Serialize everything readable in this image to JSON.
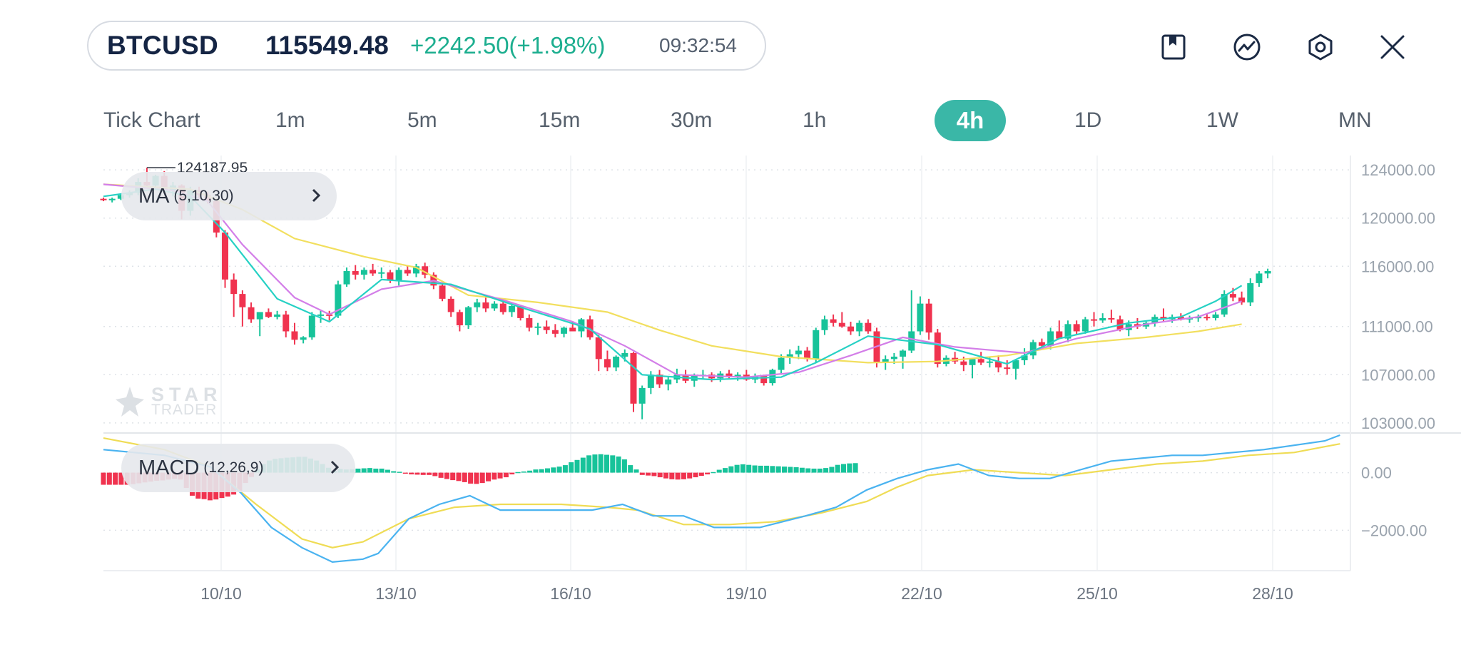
{
  "header": {
    "symbol": "BTCUSD",
    "price": "115549.48",
    "change": "+2242.50(+1.98%)",
    "time": "09:32:54"
  },
  "toolbar": {
    "icons": [
      "bookmark-icon",
      "indicator-icon",
      "settings-icon",
      "close-icon"
    ]
  },
  "timeframes": {
    "items": [
      "Tick Chart",
      "1m",
      "5m",
      "15m",
      "30m",
      "1h",
      "4h",
      "1D",
      "1W",
      "MN"
    ],
    "active": "4h"
  },
  "indicators": {
    "ma_label": "MA",
    "ma_params": "(5,10,30)",
    "macd_label": "MACD",
    "macd_params": "(12,26,9)"
  },
  "watermark": {
    "line1": "STAR",
    "line2": "TRADER"
  },
  "colors": {
    "up": "#17c39a",
    "down": "#f0334f",
    "ma5": "#26d1c4",
    "ma10": "#d37ee8",
    "ma30": "#f2df5e",
    "macd_line": "#4ab3f0",
    "signal_line": "#efdc55",
    "active_tab": "#3ab7a7"
  },
  "chart_data": {
    "type": "candlestick",
    "timeframe": "4h",
    "y_ticks": [
      "124000.00",
      "120000.00",
      "116000.00",
      "111000.00",
      "107000.00",
      "103000.00"
    ],
    "y_range": [
      102400,
      124600
    ],
    "x_ticks": [
      "10/10",
      "13/10",
      "16/10",
      "19/10",
      "22/10",
      "25/10",
      "28/10"
    ],
    "high_label": "124187.95",
    "candles": [
      [
        121600,
        121700,
        121400,
        121550
      ],
      [
        121550,
        121700,
        121300,
        121600
      ],
      [
        121600,
        122000,
        121500,
        121900
      ],
      [
        121900,
        122300,
        121700,
        122100
      ],
      [
        122100,
        123300,
        121900,
        123000
      ],
      [
        123000,
        124187,
        122600,
        122700
      ],
      [
        122700,
        123600,
        122600,
        123500
      ],
      [
        123500,
        123900,
        122200,
        122300
      ],
      [
        122300,
        123000,
        121800,
        122700
      ],
      [
        122700,
        122800,
        119900,
        120600
      ],
      [
        120600,
        122600,
        120200,
        122300
      ],
      [
        122300,
        122600,
        121700,
        121900
      ],
      [
        121900,
        122200,
        121200,
        121400
      ],
      [
        121400,
        121600,
        118400,
        118800
      ],
      [
        118800,
        119000,
        114200,
        114900
      ],
      [
        114900,
        115400,
        111800,
        113700
      ],
      [
        113700,
        114000,
        111000,
        112600
      ],
      [
        112600,
        113000,
        111300,
        111600
      ],
      [
        111600,
        112000,
        110200,
        112200
      ],
      [
        112200,
        112500,
        111700,
        111800
      ],
      [
        111800,
        112300,
        111600,
        112000
      ],
      [
        112000,
        112300,
        110100,
        110600
      ],
      [
        110600,
        111300,
        109500,
        109900
      ],
      [
        109900,
        110200,
        109600,
        110100
      ],
      [
        110100,
        112200,
        109900,
        111900
      ],
      [
        111900,
        112400,
        111300,
        112000
      ],
      [
        112000,
        112300,
        111500,
        111900
      ],
      [
        111900,
        114800,
        111700,
        114500
      ],
      [
        114500,
        115900,
        114300,
        115600
      ],
      [
        115600,
        116100,
        114900,
        115300
      ],
      [
        115300,
        115900,
        114900,
        115700
      ],
      [
        115700,
        116200,
        115200,
        115400
      ],
      [
        115400,
        115900,
        115000,
        115500
      ],
      [
        115500,
        115700,
        114600,
        114800
      ],
      [
        114800,
        115900,
        114400,
        115700
      ],
      [
        115700,
        116000,
        115200,
        115400
      ],
      [
        115400,
        116200,
        115100,
        116000
      ],
      [
        116000,
        116300,
        115000,
        115300
      ],
      [
        115300,
        115500,
        114100,
        114400
      ],
      [
        114400,
        114600,
        113100,
        113300
      ],
      [
        113300,
        113500,
        111800,
        112200
      ],
      [
        112200,
        112400,
        110600,
        111100
      ],
      [
        111100,
        112700,
        110800,
        112600
      ],
      [
        112600,
        113300,
        112200,
        113000
      ],
      [
        113000,
        113400,
        112200,
        112500
      ],
      [
        112500,
        113100,
        112300,
        112900
      ],
      [
        112900,
        113300,
        112000,
        112200
      ],
      [
        112200,
        113000,
        111800,
        112700
      ],
      [
        112700,
        112800,
        111500,
        111700
      ],
      [
        111700,
        112000,
        110600,
        110900
      ],
      [
        110900,
        111300,
        110300,
        111000
      ],
      [
        111000,
        111500,
        110400,
        110700
      ],
      [
        110700,
        111200,
        110100,
        110400
      ],
      [
        110400,
        111000,
        110100,
        110900
      ],
      [
        110900,
        111400,
        110600,
        110600
      ],
      [
        110600,
        111700,
        110100,
        111600
      ],
      [
        111600,
        111900,
        109900,
        110100
      ],
      [
        110100,
        110300,
        107300,
        108300
      ],
      [
        108300,
        109000,
        107300,
        107600
      ],
      [
        107600,
        108600,
        107300,
        108500
      ],
      [
        108500,
        109100,
        108100,
        108800
      ],
      [
        108800,
        108900,
        103900,
        104600
      ],
      [
        104600,
        106100,
        103300,
        105900
      ],
      [
        105900,
        107300,
        105400,
        107000
      ],
      [
        107000,
        107400,
        105900,
        106200
      ],
      [
        106200,
        106800,
        105700,
        106600
      ],
      [
        106600,
        107500,
        106300,
        107000
      ],
      [
        107000,
        107400,
        106300,
        106500
      ],
      [
        106500,
        107100,
        106000,
        106900
      ],
      [
        106900,
        107400,
        106600,
        107000
      ],
      [
        107000,
        107200,
        106400,
        106700
      ],
      [
        106700,
        107300,
        106400,
        107100
      ],
      [
        107100,
        107400,
        106700,
        106800
      ],
      [
        106800,
        107200,
        106500,
        107000
      ],
      [
        107000,
        107400,
        106500,
        106600
      ],
      [
        106600,
        107100,
        106300,
        106900
      ],
      [
        106900,
        107000,
        106100,
        106300
      ],
      [
        106300,
        107500,
        106100,
        107400
      ],
      [
        107400,
        108700,
        107000,
        108400
      ],
      [
        108400,
        109100,
        107900,
        108700
      ],
      [
        108700,
        109400,
        108300,
        109000
      ],
      [
        109000,
        109300,
        108100,
        108300
      ],
      [
        108300,
        110900,
        108000,
        110700
      ],
      [
        110700,
        111900,
        110300,
        111600
      ],
      [
        111600,
        112000,
        111000,
        111300
      ],
      [
        111300,
        112200,
        110900,
        111000
      ],
      [
        111000,
        111400,
        110300,
        110600
      ],
      [
        110600,
        111500,
        110200,
        111300
      ],
      [
        111300,
        111600,
        110400,
        110600
      ],
      [
        110600,
        110900,
        107600,
        108000
      ],
      [
        108000,
        108600,
        107400,
        108300
      ],
      [
        108300,
        108800,
        107900,
        108500
      ],
      [
        108500,
        109100,
        107500,
        109000
      ],
      [
        109000,
        114000,
        108800,
        110600
      ],
      [
        110600,
        113500,
        110300,
        112900
      ],
      [
        112900,
        113300,
        109900,
        110500
      ],
      [
        110500,
        110800,
        107600,
        107900
      ],
      [
        107900,
        108600,
        107700,
        108400
      ],
      [
        108400,
        108900,
        107900,
        108100
      ],
      [
        108100,
        108500,
        107300,
        107800
      ],
      [
        107800,
        108400,
        106700,
        108300
      ],
      [
        108300,
        108900,
        107800,
        108000
      ],
      [
        108000,
        108500,
        107600,
        108100
      ],
      [
        108100,
        108600,
        107200,
        107600
      ],
      [
        107600,
        108200,
        107000,
        107500
      ],
      [
        107500,
        108300,
        106600,
        108200
      ],
      [
        108200,
        109200,
        107800,
        108600
      ],
      [
        108600,
        109900,
        108300,
        109700
      ],
      [
        109700,
        110000,
        109200,
        109400
      ],
      [
        109400,
        110900,
        109100,
        110600
      ],
      [
        110600,
        111500,
        110100,
        110000
      ],
      [
        110000,
        111500,
        109700,
        111200
      ],
      [
        111200,
        111500,
        110300,
        110600
      ],
      [
        110600,
        111800,
        110400,
        111600
      ],
      [
        111600,
        112200,
        111000,
        111500
      ],
      [
        111500,
        112100,
        111300,
        111700
      ],
      [
        111700,
        112400,
        111300,
        111600
      ],
      [
        111600,
        111900,
        110600,
        110700
      ],
      [
        110700,
        111500,
        110200,
        111200
      ],
      [
        111200,
        111700,
        110800,
        111000
      ],
      [
        111000,
        111500,
        110800,
        111300
      ],
      [
        111300,
        112000,
        111000,
        111800
      ],
      [
        111800,
        112500,
        111400,
        111600
      ],
      [
        111600,
        112000,
        111300,
        111800
      ],
      [
        111800,
        112100,
        111500,
        111600
      ],
      [
        111600,
        111900,
        111300,
        111700
      ],
      [
        111700,
        112000,
        111400,
        111800
      ],
      [
        111800,
        112100,
        111500,
        111700
      ],
      [
        111700,
        112200,
        111500,
        112000
      ],
      [
        112000,
        114000,
        111800,
        113700
      ],
      [
        113700,
        114200,
        113100,
        113400
      ],
      [
        113400,
        113900,
        112800,
        113000
      ],
      [
        113000,
        115000,
        112700,
        114600
      ],
      [
        114600,
        115600,
        114300,
        115400
      ],
      [
        115400,
        115800,
        115000,
        115600
      ]
    ],
    "ma5": [
      [
        0,
        121800
      ],
      [
        6,
        122400
      ],
      [
        10,
        121800
      ],
      [
        14,
        118800
      ],
      [
        20,
        113300
      ],
      [
        26,
        111400
      ],
      [
        32,
        114900
      ],
      [
        40,
        114500
      ],
      [
        48,
        112600
      ],
      [
        56,
        110800
      ],
      [
        62,
        107000
      ],
      [
        70,
        106600
      ],
      [
        78,
        106800
      ],
      [
        82,
        108000
      ],
      [
        88,
        110200
      ],
      [
        96,
        109500
      ],
      [
        104,
        107900
      ],
      [
        110,
        110000
      ],
      [
        118,
        111300
      ],
      [
        124,
        111800
      ],
      [
        128,
        113100
      ],
      [
        131,
        114400
      ]
    ],
    "ma10": [
      [
        0,
        122800
      ],
      [
        8,
        122300
      ],
      [
        12,
        121400
      ],
      [
        16,
        117800
      ],
      [
        22,
        113400
      ],
      [
        26,
        112000
      ],
      [
        32,
        114100
      ],
      [
        38,
        114800
      ],
      [
        46,
        113200
      ],
      [
        54,
        111400
      ],
      [
        60,
        109400
      ],
      [
        66,
        107000
      ],
      [
        74,
        106800
      ],
      [
        80,
        107200
      ],
      [
        86,
        108600
      ],
      [
        92,
        110100
      ],
      [
        98,
        109300
      ],
      [
        106,
        108800
      ],
      [
        112,
        110000
      ],
      [
        120,
        111200
      ],
      [
        126,
        111800
      ],
      [
        131,
        113100
      ]
    ],
    "ma30": [
      [
        0,
        122800
      ],
      [
        10,
        122400
      ],
      [
        16,
        120700
      ],
      [
        22,
        118300
      ],
      [
        30,
        116800
      ],
      [
        36,
        115900
      ],
      [
        42,
        113600
      ],
      [
        50,
        113000
      ],
      [
        58,
        112200
      ],
      [
        64,
        110700
      ],
      [
        70,
        109400
      ],
      [
        78,
        108500
      ],
      [
        88,
        108000
      ],
      [
        96,
        108100
      ],
      [
        104,
        108600
      ],
      [
        112,
        109600
      ],
      [
        120,
        110100
      ],
      [
        126,
        110600
      ],
      [
        131,
        111200
      ]
    ],
    "macd_y_range": [
      -3400,
      1400
    ],
    "macd_ticks": [
      "0.00",
      "-2000.00"
    ],
    "macd_hist": [
      -420,
      -420,
      -420,
      -420,
      -420,
      -400,
      -370,
      -340,
      -310,
      -280,
      -270,
      -240,
      -210,
      -240,
      -530,
      -800,
      -900,
      -920,
      -960,
      -930,
      -880,
      -830,
      -760,
      -640,
      -360,
      -150,
      120,
      300,
      420,
      480,
      500,
      520,
      530,
      550,
      550,
      490,
      420,
      300,
      170,
      60,
      130,
      110,
      120,
      140,
      150,
      160,
      140,
      140,
      100,
      50,
      30,
      -20,
      -60,
      -70,
      -80,
      -80,
      -120,
      -180,
      -220,
      -260,
      -290,
      -330,
      -380,
      -390,
      -360,
      -300,
      -240,
      -200,
      -160,
      -60,
      20,
      40,
      70,
      110,
      120,
      150,
      180,
      210,
      260,
      360,
      440,
      520,
      600,
      630,
      640,
      620,
      600,
      560,
      460,
      260,
      110,
      -80,
      -100,
      -120,
      -160,
      -200,
      -230,
      -240,
      -230,
      -200,
      -160,
      -110,
      -60,
      20,
      100,
      160,
      220,
      270,
      290,
      270,
      250,
      240,
      240,
      230,
      220,
      210,
      200,
      190,
      170,
      150,
      140,
      140,
      160,
      200,
      270,
      300,
      320,
      330
    ],
    "macd_line": [
      [
        0,
        800
      ],
      [
        8,
        600
      ],
      [
        14,
        200
      ],
      [
        18,
        -700
      ],
      [
        22,
        -1900
      ],
      [
        26,
        -2600
      ],
      [
        30,
        -3100
      ],
      [
        34,
        -3000
      ],
      [
        36,
        -2800
      ],
      [
        40,
        -1600
      ],
      [
        44,
        -1100
      ],
      [
        48,
        -800
      ],
      [
        52,
        -1300
      ],
      [
        58,
        -1300
      ],
      [
        64,
        -1300
      ],
      [
        68,
        -1100
      ],
      [
        72,
        -1500
      ],
      [
        76,
        -1500
      ],
      [
        80,
        -1900
      ],
      [
        86,
        -1900
      ],
      [
        92,
        -1500
      ],
      [
        96,
        -1200
      ],
      [
        100,
        -600
      ],
      [
        104,
        -200
      ],
      [
        108,
        100
      ],
      [
        112,
        300
      ],
      [
        116,
        -100
      ],
      [
        120,
        -200
      ],
      [
        124,
        -200
      ],
      [
        128,
        100
      ],
      [
        132,
        400
      ],
      [
        136,
        500
      ],
      [
        140,
        600
      ],
      [
        144,
        600
      ],
      [
        148,
        700
      ],
      [
        152,
        800
      ],
      [
        160,
        1100
      ],
      [
        162,
        1300
      ]
    ],
    "signal_line": [
      [
        0,
        1200
      ],
      [
        8,
        800
      ],
      [
        14,
        200
      ],
      [
        20,
        -1100
      ],
      [
        26,
        -2300
      ],
      [
        30,
        -2600
      ],
      [
        34,
        -2400
      ],
      [
        40,
        -1600
      ],
      [
        46,
        -1200
      ],
      [
        52,
        -1100
      ],
      [
        60,
        -1100
      ],
      [
        66,
        -1200
      ],
      [
        70,
        -1300
      ],
      [
        76,
        -1800
      ],
      [
        82,
        -1800
      ],
      [
        88,
        -1700
      ],
      [
        94,
        -1400
      ],
      [
        100,
        -1000
      ],
      [
        104,
        -500
      ],
      [
        108,
        -100
      ],
      [
        114,
        100
      ],
      [
        120,
        0
      ],
      [
        126,
        -100
      ],
      [
        132,
        100
      ],
      [
        138,
        300
      ],
      [
        144,
        400
      ],
      [
        150,
        600
      ],
      [
        156,
        700
      ],
      [
        160,
        900
      ],
      [
        162,
        1000
      ]
    ]
  }
}
